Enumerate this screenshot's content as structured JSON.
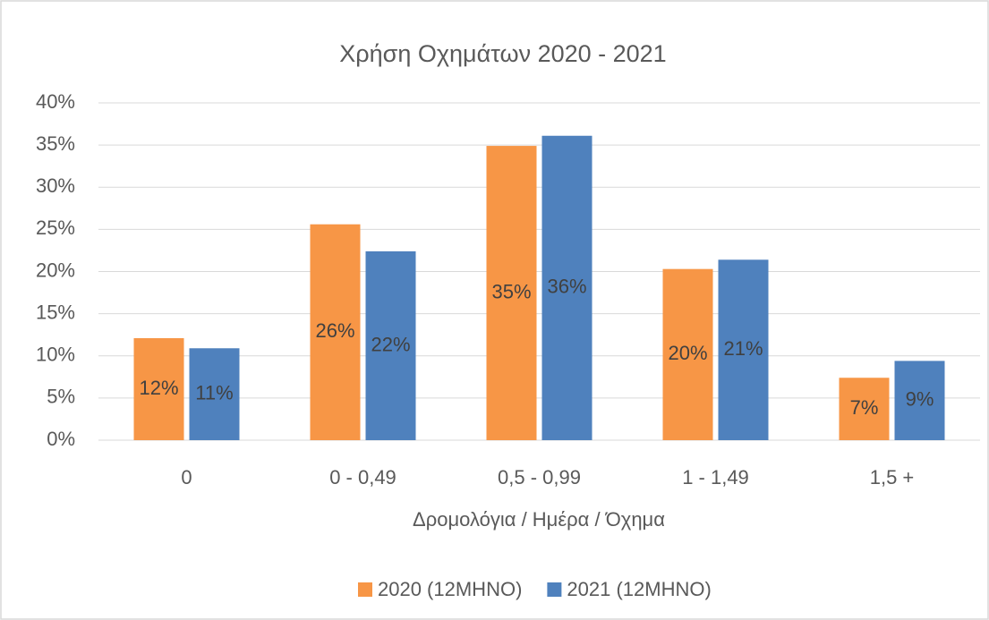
{
  "chart_data": {
    "type": "bar",
    "title": "Χρήση Οχημάτων 2020 -  2021",
    "x_label": "Δρομολόγια / Ημέρα / Όχημα",
    "categories": [
      "0",
      "0 - 0,49",
      "0,5 - 0,99",
      "1 - 1,49",
      "1,5 +"
    ],
    "series": [
      {
        "name": "2020 (12ΜΗΝΟ)",
        "color": "#f79646",
        "values": [
          12.1,
          25.6,
          34.9,
          20.3,
          7.4
        ],
        "value_labels": [
          "12%",
          "26%",
          "35%",
          "20%",
          "7%"
        ]
      },
      {
        "name": "2021 (12ΜΗΝΟ)",
        "color": "#4f81bd",
        "values": [
          10.9,
          22.4,
          36.1,
          21.4,
          9.4
        ],
        "value_labels": [
          "11%",
          "22%",
          "36%",
          "21%",
          "9%"
        ]
      }
    ],
    "ylim": [
      0,
      40
    ],
    "yticks": [
      {
        "value": 0,
        "label": "0%"
      },
      {
        "value": 5,
        "label": "5%"
      },
      {
        "value": 10,
        "label": "10%"
      },
      {
        "value": 15,
        "label": "15%"
      },
      {
        "value": 20,
        "label": "20%"
      },
      {
        "value": 25,
        "label": "25%"
      },
      {
        "value": 30,
        "label": "30%"
      },
      {
        "value": 35,
        "label": "35%"
      },
      {
        "value": 40,
        "label": "40%"
      }
    ],
    "grid": true,
    "legend": "bottom"
  }
}
